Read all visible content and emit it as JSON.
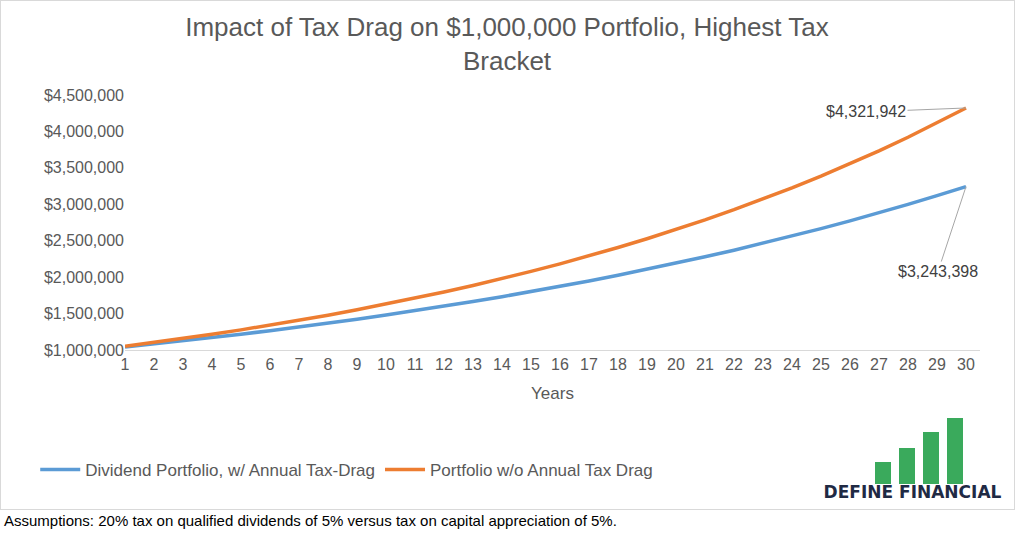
{
  "chart_data": {
    "type": "line",
    "title": "Impact of Tax Drag on $1,000,000 Portfolio, Highest Tax Bracket",
    "x_label": "Years",
    "categories": [
      "1",
      "2",
      "3",
      "4",
      "5",
      "6",
      "7",
      "8",
      "9",
      "10",
      "11",
      "12",
      "13",
      "14",
      "15",
      "16",
      "17",
      "18",
      "19",
      "20",
      "21",
      "22",
      "23",
      "24",
      "25",
      "26",
      "27",
      "28",
      "29",
      "30"
    ],
    "series": [
      {
        "name": "Dividend Portfolio, w/ Annual Tax-Drag",
        "color": "#5B9BD5",
        "values": [
          1040000,
          1081600,
          1124864,
          1169859,
          1216653,
          1265319,
          1315932,
          1368569,
          1423312,
          1480244,
          1539454,
          1601032,
          1665074,
          1731676,
          1800944,
          1872981,
          1947900,
          2025817,
          2106849,
          2191123,
          2278768,
          2369919,
          2464716,
          2563304,
          2665836,
          2772470,
          2883369,
          2998703,
          3118651,
          3243398
        ]
      },
      {
        "name": "Portfolio w/o Annual Tax Drag",
        "color": "#ED7D31",
        "values": [
          1050000,
          1102500,
          1157625,
          1215506,
          1276282,
          1340096,
          1407100,
          1477455,
          1551328,
          1628895,
          1710339,
          1795856,
          1885649,
          1979932,
          2078928,
          2182875,
          2292018,
          2406619,
          2526950,
          2653298,
          2785963,
          2925261,
          3071524,
          3225100,
          3386355,
          3555673,
          3733456,
          3920129,
          4116136,
          4321942
        ]
      }
    ],
    "ylim": [
      1000000,
      4500000
    ],
    "yticks": [
      {
        "value": 1000000,
        "label": "$1,000,000"
      },
      {
        "value": 1500000,
        "label": "$1,500,000"
      },
      {
        "value": 2000000,
        "label": "$2,000,000"
      },
      {
        "value": 2500000,
        "label": "$2,500,000"
      },
      {
        "value": 3000000,
        "label": "$3,000,000"
      },
      {
        "value": 3500000,
        "label": "$3,500,000"
      },
      {
        "value": 4000000,
        "label": "$4,000,000"
      },
      {
        "value": 4500000,
        "label": "$4,500,000"
      }
    ],
    "grid": false,
    "legend": "bottom",
    "annotations": [
      {
        "text": "$4,321,942",
        "category": "30",
        "value": 4321942
      },
      {
        "text": "$3,243,398",
        "category": "30",
        "value": 3243398
      }
    ]
  },
  "footnote": "Assumptions: 20% tax on qualified dividends of 5% versus tax on capital appreciation of 5%.",
  "logo": "DEFINE FINANCIAL"
}
